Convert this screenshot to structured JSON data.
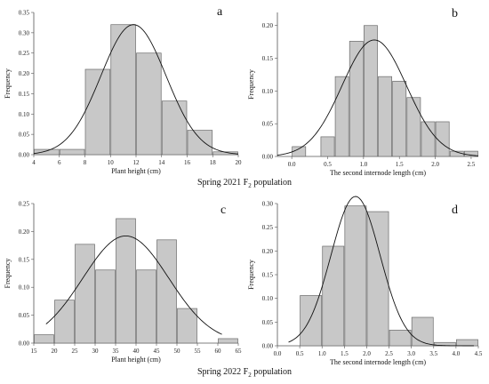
{
  "captions": {
    "top": {
      "prefix": "Spring 2021 F",
      "sub": "2",
      "suffix": " population"
    },
    "bottom": {
      "prefix": "Spring 2022 F",
      "sub": "2",
      "suffix": " population"
    }
  },
  "chart_data": [
    {
      "type": "bar",
      "panel_label": "a",
      "xlabel": "Plant height (cm)",
      "ylabel": "Frequency",
      "xlim": [
        4,
        20
      ],
      "ylim": [
        0,
        0.35
      ],
      "xticks": [
        4,
        6,
        8,
        10,
        12,
        14,
        16,
        18,
        20
      ],
      "yticks": [
        0.0,
        0.05,
        0.1,
        0.15,
        0.2,
        0.25,
        0.3,
        0.35
      ],
      "bin_width": 2,
      "x": [
        5,
        7,
        9,
        11,
        13,
        15,
        17,
        19
      ],
      "values": [
        0.013,
        0.013,
        0.21,
        0.32,
        0.25,
        0.132,
        0.06,
        0.007
      ],
      "curve": {
        "type": "normal",
        "mean": 11.8,
        "sd": 2.55,
        "peak": 0.32
      },
      "grid": false
    },
    {
      "type": "bar",
      "panel_label": "b",
      "xlabel": "The second internode length (cm)",
      "ylabel": "Frequency",
      "xlim": [
        -0.2,
        2.6
      ],
      "ylim": [
        0,
        0.22
      ],
      "xticks": [
        0.0,
        0.5,
        1.0,
        1.5,
        2.0,
        2.5
      ],
      "yticks": [
        0.0,
        0.05,
        0.1,
        0.15,
        0.2
      ],
      "bin_width": 0.2,
      "x": [
        0.1,
        0.5,
        0.7,
        0.9,
        1.1,
        1.3,
        1.5,
        1.7,
        1.9,
        2.1,
        2.3,
        2.5
      ],
      "values": [
        0.015,
        0.03,
        0.122,
        0.176,
        0.2,
        0.122,
        0.115,
        0.09,
        0.053,
        0.053,
        0.008,
        0.008
      ],
      "curve": {
        "type": "normal",
        "mean": 1.15,
        "sd": 0.45,
        "peak": 0.178
      },
      "grid": false
    },
    {
      "type": "bar",
      "panel_label": "c",
      "xlabel": "Plant height (cm)",
      "ylabel": "Frequency",
      "xlim": [
        15,
        65
      ],
      "ylim": [
        0,
        0.25
      ],
      "xticks": [
        15,
        20,
        25,
        30,
        35,
        40,
        45,
        50,
        55,
        60,
        65
      ],
      "yticks": [
        0.0,
        0.05,
        0.1,
        0.15,
        0.2,
        0.25
      ],
      "bin_width": 5,
      "x": [
        17.5,
        22.5,
        27.5,
        32.5,
        37.5,
        42.5,
        47.5,
        52.5,
        62.5
      ],
      "values": [
        0.015,
        0.077,
        0.177,
        0.131,
        0.223,
        0.131,
        0.185,
        0.062,
        0.008
      ],
      "curve": {
        "type": "normal",
        "mean": 37.5,
        "sd": 10.5,
        "peak": 0.192,
        "range": [
          18,
          61
        ]
      },
      "grid": false
    },
    {
      "type": "bar",
      "panel_label": "d",
      "xlabel": "The second internode length (cm)",
      "ylabel": "Frequency",
      "xlim": [
        0,
        4.5
      ],
      "ylim": [
        0,
        0.3
      ],
      "xticks": [
        0.0,
        0.5,
        1.0,
        1.5,
        2.0,
        2.5,
        3.0,
        3.5,
        4.0,
        4.5
      ],
      "yticks": [
        0.0,
        0.05,
        0.1,
        0.15,
        0.2,
        0.25,
        0.3
      ],
      "bin_width": 0.5,
      "x": [
        0.75,
        1.25,
        1.75,
        2.25,
        2.75,
        3.25,
        3.75,
        4.25
      ],
      "values": [
        0.106,
        0.21,
        0.295,
        0.283,
        0.033,
        0.06,
        0.007,
        0.013
      ],
      "curve": {
        "type": "normal",
        "mean": 1.75,
        "sd": 0.55,
        "peak": 0.315,
        "range": [
          0.25,
          4.4
        ]
      },
      "grid": false
    }
  ]
}
